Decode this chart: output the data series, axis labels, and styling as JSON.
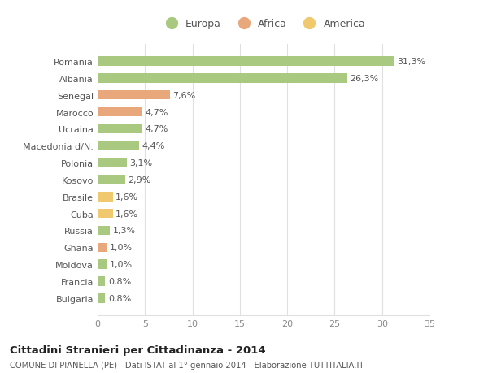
{
  "countries": [
    "Romania",
    "Albania",
    "Senegal",
    "Marocco",
    "Ucraina",
    "Macedonia d/N.",
    "Polonia",
    "Kosovo",
    "Brasile",
    "Cuba",
    "Russia",
    "Ghana",
    "Moldova",
    "Francia",
    "Bulgaria"
  ],
  "values": [
    31.3,
    26.3,
    7.6,
    4.7,
    4.7,
    4.4,
    3.1,
    2.9,
    1.6,
    1.6,
    1.3,
    1.0,
    1.0,
    0.8,
    0.8
  ],
  "labels": [
    "31,3%",
    "26,3%",
    "7,6%",
    "4,7%",
    "4,7%",
    "4,4%",
    "3,1%",
    "2,9%",
    "1,6%",
    "1,6%",
    "1,3%",
    "1,0%",
    "1,0%",
    "0,8%",
    "0,8%"
  ],
  "continents": [
    "Europa",
    "Europa",
    "Africa",
    "Africa",
    "Europa",
    "Europa",
    "Europa",
    "Europa",
    "America",
    "America",
    "Europa",
    "Africa",
    "Europa",
    "Europa",
    "Europa"
  ],
  "colors": {
    "Europa": "#a8c97f",
    "Africa": "#e8a87c",
    "America": "#f0c96e"
  },
  "legend_order": [
    "Europa",
    "Africa",
    "America"
  ],
  "title": "Cittadini Stranieri per Cittadinanza - 2014",
  "subtitle": "COMUNE DI PIANELLA (PE) - Dati ISTAT al 1° gennaio 2014 - Elaborazione TUTTITALIA.IT",
  "xlabel_ticks": [
    0,
    5,
    10,
    15,
    20,
    25,
    30,
    35
  ],
  "xlim": [
    0,
    35
  ],
  "background_color": "#ffffff",
  "grid_color": "#e0e0e0"
}
